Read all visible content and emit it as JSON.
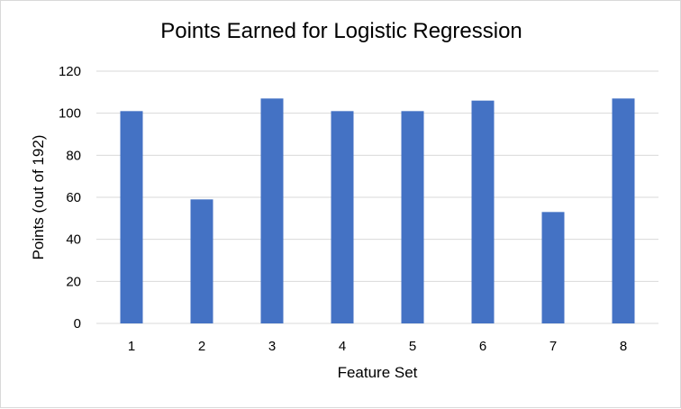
{
  "chart_data": {
    "type": "bar",
    "title": "Points Earned for Logistic Regression",
    "xlabel": "Feature Set",
    "ylabel": "Points (out of 192)",
    "categories": [
      "1",
      "2",
      "3",
      "4",
      "5",
      "6",
      "7",
      "8"
    ],
    "values": [
      101,
      59,
      107,
      101,
      101,
      106,
      53,
      107
    ],
    "ylim": [
      0,
      120
    ],
    "yticks": [
      0,
      20,
      40,
      60,
      80,
      100,
      120
    ],
    "grid": true,
    "legend": "none",
    "bar_color": "#4472C4",
    "grid_color": "#d9d9d9"
  }
}
